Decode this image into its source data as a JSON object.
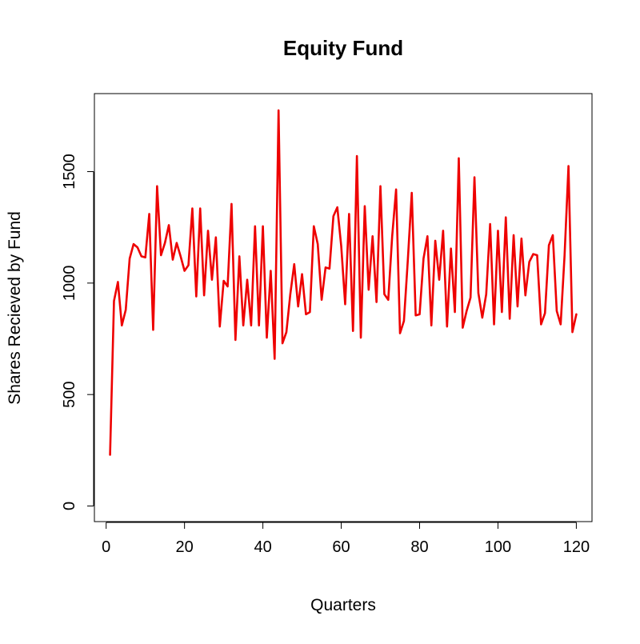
{
  "colors": {
    "series": "#ee0000",
    "axis": "#000000",
    "background": "#ffffff"
  },
  "chart_data": {
    "type": "line",
    "title": "Equity Fund",
    "xlabel": "Quarters",
    "ylabel": "Shares Recieved by Fund",
    "xlim": [
      -3,
      124
    ],
    "ylim": [
      -70,
      1850
    ],
    "xticks": [
      0,
      20,
      40,
      60,
      80,
      100,
      120
    ],
    "yticks": [
      0,
      500,
      1000,
      1500
    ],
    "grid": false,
    "legend": "none",
    "series": [
      {
        "x": [
          1,
          2,
          3,
          4,
          5,
          6,
          7,
          8,
          9,
          10,
          11,
          12,
          13,
          14,
          15,
          16,
          17,
          18,
          19,
          20,
          21,
          22,
          23,
          24,
          25,
          26,
          27,
          28,
          29,
          30,
          31,
          32,
          33,
          34,
          35,
          36,
          37,
          38,
          39,
          40,
          41,
          42,
          43,
          44,
          45,
          46,
          47,
          48,
          49,
          50,
          51,
          52,
          53,
          54,
          55,
          56,
          57,
          58,
          59,
          60,
          61,
          62,
          63,
          64,
          65,
          66,
          67,
          68,
          69,
          70,
          71,
          72,
          73,
          74,
          75,
          76,
          77,
          78,
          79,
          80,
          81,
          82,
          83,
          84,
          85,
          86,
          87,
          88,
          89,
          90,
          91,
          92,
          93,
          94,
          95,
          96,
          97,
          98,
          99,
          100,
          101,
          102,
          103,
          104,
          105,
          106,
          107,
          108,
          109,
          110,
          111,
          112,
          113,
          114,
          115,
          116,
          117,
          118,
          119,
          120
        ],
        "values": [
          230,
          920,
          1005,
          810,
          880,
          1110,
          1175,
          1160,
          1120,
          1115,
          1310,
          790,
          1435,
          1125,
          1180,
          1260,
          1105,
          1180,
          1120,
          1055,
          1080,
          1335,
          940,
          1335,
          945,
          1235,
          1015,
          1205,
          805,
          1010,
          985,
          1355,
          745,
          1120,
          810,
          1015,
          810,
          1255,
          810,
          1255,
          755,
          1055,
          660,
          1775,
          730,
          780,
          950,
          1085,
          895,
          1040,
          860,
          870,
          1255,
          1175,
          925,
          1070,
          1065,
          1300,
          1340,
          1165,
          905,
          1310,
          785,
          1570,
          755,
          1345,
          970,
          1210,
          915,
          1435,
          950,
          925,
          1210,
          1420,
          775,
          830,
          1105,
          1405,
          855,
          860,
          1110,
          1210,
          810,
          1190,
          1015,
          1235,
          805,
          1155,
          870,
          1560,
          800,
          875,
          935,
          1475,
          955,
          845,
          950,
          1265,
          815,
          1235,
          870,
          1295,
          840,
          1215,
          895,
          1200,
          945,
          1095,
          1130,
          1125,
          815,
          865,
          1170,
          1215,
          875,
          815,
          1125,
          1525,
          780,
          860
        ]
      }
    ]
  }
}
